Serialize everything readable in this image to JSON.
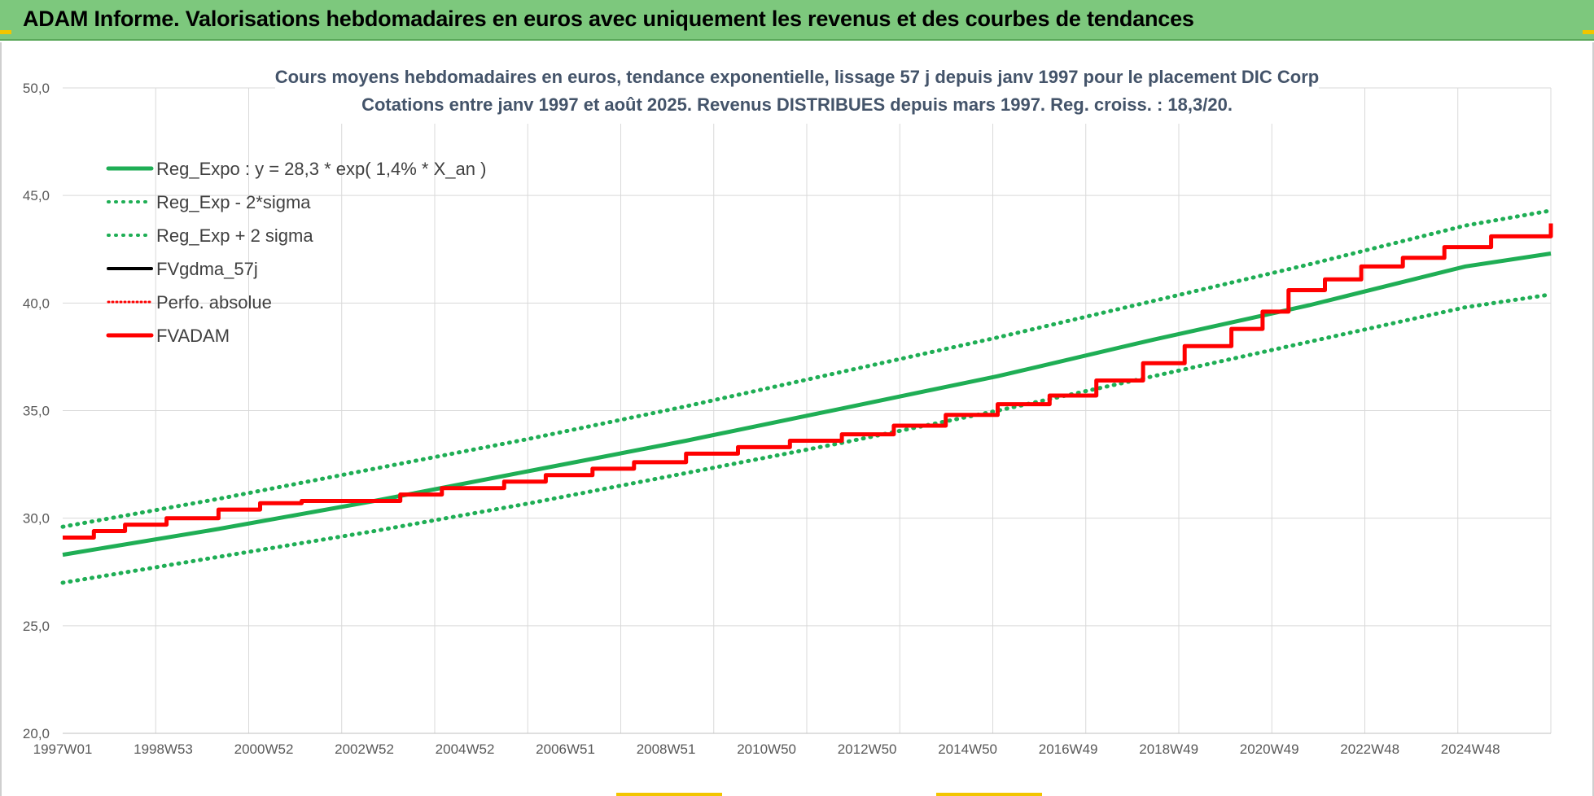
{
  "header": {
    "title": "ADAM Informe. Valorisations hebdomadaires en euros avec uniquement les revenus et des courbes de tendances"
  },
  "colors": {
    "banner": "#7dc87d",
    "green": "#1fae55",
    "red": "#ff0000",
    "black": "#000000",
    "grid": "#d9d9d9",
    "accent": "#f2c500"
  },
  "chart_data": {
    "type": "line",
    "title": "Cours moyens hebdomadaires en euros, tendance exponentielle, lissage 57 j depuis janv 1997 pour le placement DIC Corp",
    "subtitle": "Cotations entre janv 1997 et août 2025.  Revenus DISTRIBUES depuis mars 1997. Reg. croiss. : 18,3/20.",
    "xlabel": "",
    "ylabel": "",
    "ylim": [
      20,
      50
    ],
    "yticks": [
      "20,0",
      "25,0",
      "30,0",
      "35,0",
      "40,0",
      "45,0",
      "50,0"
    ],
    "xlim": [
      1997.0,
      2025.65
    ],
    "x_tick_labels": [
      "1997W01",
      "1998W53",
      "2000W52",
      "2002W52",
      "2004W52",
      "2006W51",
      "2008W51",
      "2010W50",
      "2012W50",
      "2014W50",
      "2016W49",
      "2018W49",
      "2020W49",
      "2022W48",
      "2024W48"
    ],
    "grid": true,
    "legend_position": "top-left",
    "legend": [
      {
        "label": "Reg_Expo : y = 28,3 * exp( 1,4% *  X_an )",
        "color": "#1fae55",
        "style": "solid"
      },
      {
        "label": "Reg_Exp - 2*sigma",
        "color": "#1fae55",
        "style": "dotted"
      },
      {
        "label": "Reg_Exp + 2 sigma",
        "color": "#1fae55",
        "style": "dotted"
      },
      {
        "label": "FVgdma_57j",
        "color": "#000000",
        "style": "solid"
      },
      {
        "label": "Perfo. absolue",
        "color": "#ff0000",
        "style": "dotted"
      },
      {
        "label": "FVADAM",
        "color": "#ff0000",
        "style": "solid"
      }
    ],
    "series": [
      {
        "name": "Reg_Expo : y = 28,3 * exp( 1,4% *  X_an )",
        "x": [
          1997.0,
          2000.0,
          2003.0,
          2006.0,
          2009.0,
          2012.0,
          2015.0,
          2018.0,
          2021.0,
          2024.0,
          2025.65
        ],
        "values": [
          28.3,
          29.5,
          30.8,
          32.2,
          33.6,
          35.1,
          36.6,
          38.3,
          39.9,
          41.7,
          42.3
        ]
      },
      {
        "name": "Reg_Exp - 2*sigma",
        "x": [
          1997.0,
          2000.0,
          2003.0,
          2006.0,
          2009.0,
          2012.0,
          2015.0,
          2018.0,
          2021.0,
          2024.0,
          2025.65
        ],
        "values": [
          27.0,
          28.2,
          29.4,
          30.7,
          32.1,
          33.5,
          35.0,
          36.6,
          38.2,
          39.8,
          40.4
        ]
      },
      {
        "name": "Reg_Exp + 2 sigma",
        "x": [
          1997.0,
          2000.0,
          2003.0,
          2006.0,
          2009.0,
          2012.0,
          2015.0,
          2018.0,
          2021.0,
          2024.0,
          2025.65
        ],
        "values": [
          29.6,
          30.9,
          32.3,
          33.7,
          35.2,
          36.8,
          38.4,
          40.1,
          41.8,
          43.6,
          44.3
        ]
      },
      {
        "name": "FVgdma_57j",
        "x": [
          1997.0,
          1997.6,
          1998.2,
          1999.0,
          2000.0,
          2000.8,
          2001.6,
          2002.8,
          2003.5,
          2004.3,
          2005.5,
          2006.3,
          2007.2,
          2008.0,
          2009.0,
          2010.0,
          2011.0,
          2012.0,
          2013.0,
          2014.0,
          2015.0,
          2016.0,
          2016.9,
          2017.8,
          2018.6,
          2019.5,
          2020.1,
          2020.6,
          2021.3,
          2022.0,
          2022.8,
          2023.6,
          2024.5,
          2025.65
        ],
        "values": [
          29.1,
          29.4,
          29.7,
          30.0,
          30.4,
          30.7,
          30.8,
          30.8,
          31.1,
          31.4,
          31.7,
          32.0,
          32.3,
          32.6,
          33.0,
          33.3,
          33.6,
          33.9,
          34.3,
          34.8,
          35.3,
          35.7,
          36.4,
          37.2,
          38.0,
          38.8,
          39.6,
          40.6,
          41.1,
          41.7,
          42.1,
          42.6,
          43.1,
          43.7
        ]
      },
      {
        "name": "FVADAM",
        "x": [
          1997.0,
          1997.6,
          1998.2,
          1999.0,
          2000.0,
          2000.8,
          2001.6,
          2002.8,
          2003.5,
          2004.3,
          2005.5,
          2006.3,
          2007.2,
          2008.0,
          2009.0,
          2010.0,
          2011.0,
          2012.0,
          2013.0,
          2014.0,
          2015.0,
          2016.0,
          2016.9,
          2017.8,
          2018.6,
          2019.5,
          2020.1,
          2020.6,
          2021.3,
          2022.0,
          2022.8,
          2023.6,
          2024.5,
          2025.65
        ],
        "values": [
          29.1,
          29.4,
          29.7,
          30.0,
          30.4,
          30.7,
          30.8,
          30.8,
          31.1,
          31.4,
          31.7,
          32.0,
          32.3,
          32.6,
          33.0,
          33.3,
          33.6,
          33.9,
          34.3,
          34.8,
          35.3,
          35.7,
          36.4,
          37.2,
          38.0,
          38.8,
          39.6,
          40.6,
          41.1,
          41.7,
          42.1,
          42.6,
          43.1,
          43.7
        ]
      }
    ]
  }
}
